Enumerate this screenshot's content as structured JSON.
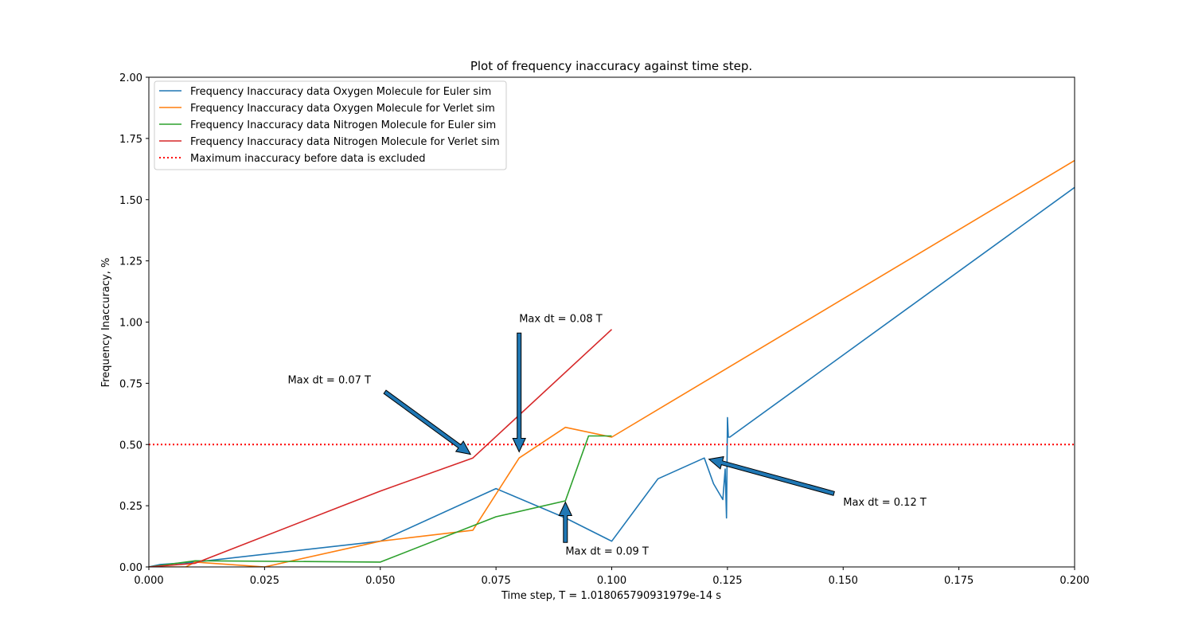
{
  "chart_data": {
    "type": "line",
    "title": "Plot of frequency inaccuracy against time step.",
    "xlabel": "Time step, T = 1.018065790931979e-14 s",
    "ylabel": "Frequency Inaccuracy, %",
    "xlim": [
      0,
      0.2
    ],
    "ylim": [
      0,
      2.0
    ],
    "xticks": [
      "0.000",
      "0.025",
      "0.050",
      "0.075",
      "0.100",
      "0.125",
      "0.150",
      "0.175",
      "0.200"
    ],
    "xtick_values": [
      0,
      0.025,
      0.05,
      0.075,
      0.1,
      0.125,
      0.15,
      0.175,
      0.2
    ],
    "yticks": [
      "0.00",
      "0.25",
      "0.50",
      "0.75",
      "1.00",
      "1.25",
      "1.50",
      "1.75",
      "2.00"
    ],
    "ytick_values": [
      0,
      0.25,
      0.5,
      0.75,
      1.0,
      1.25,
      1.5,
      1.75,
      2.0
    ],
    "grid": false,
    "legend_position": "top-left",
    "series": [
      {
        "name": "Frequency Inaccuracy data Oxygen Molecule for Euler sim",
        "color": "#1f77b4",
        "style": "solid",
        "x": [
          0.0,
          0.0025,
          0.01,
          0.05,
          0.075,
          0.09,
          0.1,
          0.11,
          0.12,
          0.122,
          0.124,
          0.1245,
          0.1248,
          0.125,
          0.1252,
          0.1255,
          0.2
        ],
        "y": [
          0.0,
          0.01,
          0.02,
          0.105,
          0.32,
          0.2,
          0.105,
          0.36,
          0.445,
          0.34,
          0.275,
          0.4,
          0.2,
          0.61,
          0.53,
          0.53,
          1.55
        ]
      },
      {
        "name": "Frequency Inaccuracy data Oxygen Molecule for Verlet sim",
        "color": "#ff7f0e",
        "style": "solid",
        "x": [
          0.0,
          0.008,
          0.01,
          0.025,
          0.05,
          0.07,
          0.08,
          0.09,
          0.1,
          0.2
        ],
        "y": [
          0.0,
          0.0,
          0.02,
          0.0,
          0.105,
          0.15,
          0.445,
          0.57,
          0.53,
          1.66
        ]
      },
      {
        "name": "Frequency Inaccuracy data Nitrogen Molecule for Euler sim",
        "color": "#2ca02c",
        "style": "solid",
        "x": [
          0.0,
          0.01,
          0.05,
          0.075,
          0.09,
          0.095,
          0.1
        ],
        "y": [
          0.0,
          0.025,
          0.02,
          0.205,
          0.27,
          0.535,
          0.535
        ]
      },
      {
        "name": "Frequency Inaccuracy data Nitrogen Molecule for Verlet sim",
        "color": "#d62728",
        "style": "solid",
        "x": [
          0.0,
          0.01,
          0.05,
          0.07,
          0.1
        ],
        "y": [
          0.0,
          0.015,
          0.31,
          0.445,
          0.97
        ]
      },
      {
        "name": "Maximum inaccuracy before data is excluded",
        "color": "#ff0000",
        "style": "dotted",
        "x": [
          0.0,
          0.2
        ],
        "y": [
          0.5,
          0.5
        ]
      }
    ],
    "annotations": [
      {
        "text": "Max dt = 0.07 T",
        "text_x": 0.03,
        "text_y": 0.75,
        "tail_x": 0.051,
        "tail_y": 0.715,
        "tip_x": 0.0695,
        "tip_y": 0.46
      },
      {
        "text": "Max dt = 0.08 T",
        "text_x": 0.08,
        "text_y": 1.0,
        "tail_x": 0.08,
        "tail_y": 0.955,
        "tip_x": 0.08,
        "tip_y": 0.47
      },
      {
        "text": "Max dt = 0.09 T",
        "text_x": 0.09,
        "text_y": 0.05,
        "tail_x": 0.09,
        "tail_y": 0.1,
        "tip_x": 0.09,
        "tip_y": 0.265
      },
      {
        "text": "Max dt = 0.12 T",
        "text_x": 0.15,
        "text_y": 0.25,
        "tail_x": 0.148,
        "tail_y": 0.3,
        "tip_x": 0.121,
        "tip_y": 0.44
      }
    ]
  }
}
